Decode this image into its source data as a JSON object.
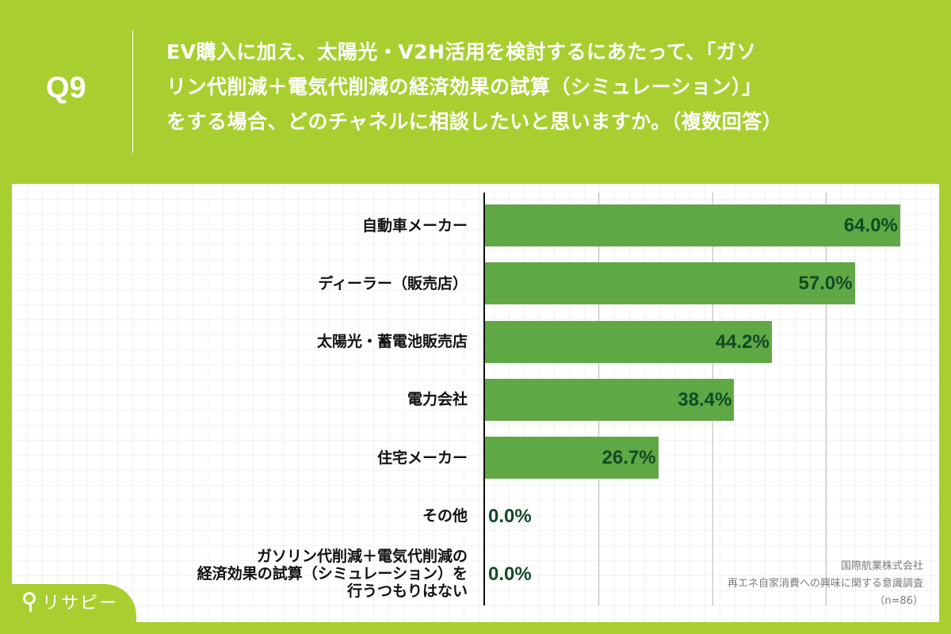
{
  "header": {
    "question_number": "Q9",
    "question_lines": [
      "EV購入に加え、太陽光・V2H活用を検討するにあたって、「ガソ",
      "リン代削減＋電気代削減の経済効果の試算（シミュレーション）」",
      "をする場合、どのチャネルに相談したいと思いますか。（複数回答）"
    ]
  },
  "colors": {
    "background": "#a8cf2f",
    "bar": "#5fa845",
    "value_text": "#114a26",
    "card": "#ffffff"
  },
  "chart_data": {
    "type": "bar",
    "orientation": "horizontal",
    "title": "EV購入に加え、太陽光・V2H活用を検討するにあたって、「ガソリン代削減＋電気代削減の経済効果の試算（シミュレーション）」をする場合、どのチャネルに相談したいと思いますか。（複数回答）",
    "categories": [
      "自動車メーカー",
      "ディーラー（販売店）",
      "太陽光・蓄電池販売店",
      "電力会社",
      "住宅メーカー",
      "その他",
      "ガソリン代削減＋電気代削減の経済効果の試算（シミュレーション）を行うつもりはない"
    ],
    "values": [
      64.0,
      57.0,
      44.2,
      38.4,
      26.7,
      0.0,
      0.0
    ],
    "value_labels": [
      "64.0%",
      "57.0%",
      "44.2%",
      "38.4%",
      "26.7%",
      "0.0%",
      "0.0%"
    ],
    "xlabel": "",
    "ylabel": "",
    "xlim": [
      0,
      70
    ],
    "gridlines": [
      17.5,
      35,
      52.5,
      70
    ],
    "grid": true,
    "legend": "none",
    "n": 86
  },
  "rows": [
    {
      "label_lines": [
        "自動車メーカー"
      ],
      "value": 64.0,
      "value_label": "64.0%"
    },
    {
      "label_lines": [
        "ディーラー（販売店）"
      ],
      "value": 57.0,
      "value_label": "57.0%"
    },
    {
      "label_lines": [
        "太陽光・蓄電池販売店"
      ],
      "value": 44.2,
      "value_label": "44.2%"
    },
    {
      "label_lines": [
        "電力会社"
      ],
      "value": 38.4,
      "value_label": "38.4%"
    },
    {
      "label_lines": [
        "住宅メーカー"
      ],
      "value": 26.7,
      "value_label": "26.7%"
    },
    {
      "label_lines": [
        "その他"
      ],
      "value": 0.0,
      "value_label": "0.0%"
    },
    {
      "label_lines": [
        "ガソリン代削減＋電気代削減の",
        "経済効果の試算（シミュレーション）を",
        "行うつもりはない"
      ],
      "value": 0.0,
      "value_label": "0.0%"
    }
  ],
  "source": {
    "company": "国際航業株式会社",
    "survey": "再エネ自家消費への興味に関する意識調査",
    "sample": "（n=86）"
  },
  "logo": {
    "icon": "map-pin-icon",
    "text": "リサピー"
  }
}
